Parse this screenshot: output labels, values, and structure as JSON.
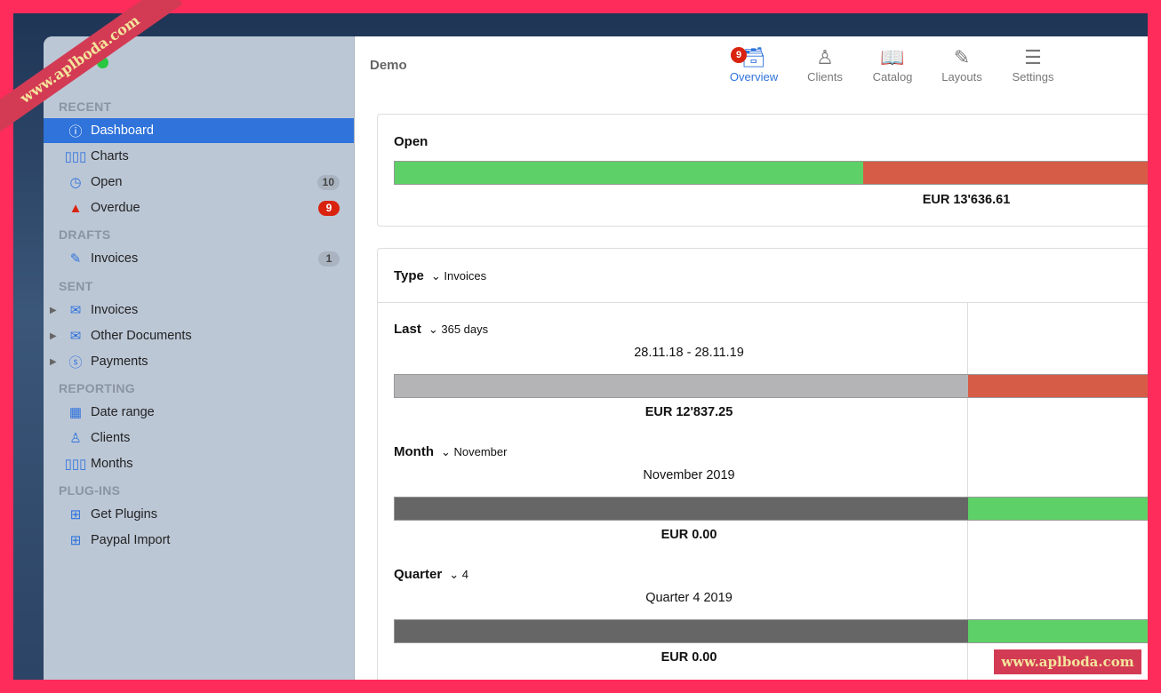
{
  "watermark": "www.aplboda.com",
  "sidebar": {
    "sections": [
      "RECENT",
      "DRAFTS",
      "SENT",
      "REPORTING",
      "PLUG-INS"
    ],
    "items": [
      {
        "label": "Dashboard",
        "icon": "info-icon"
      },
      {
        "label": "Charts",
        "icon": "bar-chart-icon"
      },
      {
        "label": "Open",
        "icon": "clock-icon",
        "badge": "10"
      },
      {
        "label": "Overdue",
        "icon": "warning-icon",
        "badge": "9"
      },
      {
        "label": "Invoices",
        "icon": "pencil-icon",
        "badge": "1"
      },
      {
        "label": "Invoices",
        "icon": "envelope-icon"
      },
      {
        "label": "Other Documents",
        "icon": "envelope-icon"
      },
      {
        "label": "Payments",
        "icon": "dollar-icon"
      },
      {
        "label": "Date range",
        "icon": "calendar-icon"
      },
      {
        "label": "Clients",
        "icon": "person-icon"
      },
      {
        "label": "Months",
        "icon": "bar-chart-icon"
      },
      {
        "label": "Get Plugins",
        "icon": "plus-square-icon"
      },
      {
        "label": "Paypal Import",
        "icon": "plus-square-icon"
      }
    ]
  },
  "header": {
    "title": "Demo",
    "overview_badge": "9",
    "tabs": [
      "Overview",
      "Clients",
      "Catalog",
      "Layouts",
      "Settings"
    ]
  },
  "open": {
    "title": "Open",
    "amount": "EUR 13'636.61",
    "paid_fraction": 0.62
  },
  "type": {
    "label": "Type",
    "value": "Invoices"
  },
  "rows": [
    {
      "label": "Last",
      "value": "365 days",
      "range": "28.11.18 - 28.11.19",
      "amount": "EUR 12'837.25"
    },
    {
      "label": "Month",
      "value": "November",
      "range": "November 2019",
      "amount": "EUR 0.00"
    },
    {
      "label": "Quarter",
      "value": "4",
      "range": "Quarter 4 2019",
      "amount": "EUR 0.00"
    }
  ],
  "colors": {
    "accent": "#2f73db",
    "green": "#5dd167",
    "red": "#d65c48",
    "grey": "#b4b3b6",
    "dark": "#666666"
  }
}
